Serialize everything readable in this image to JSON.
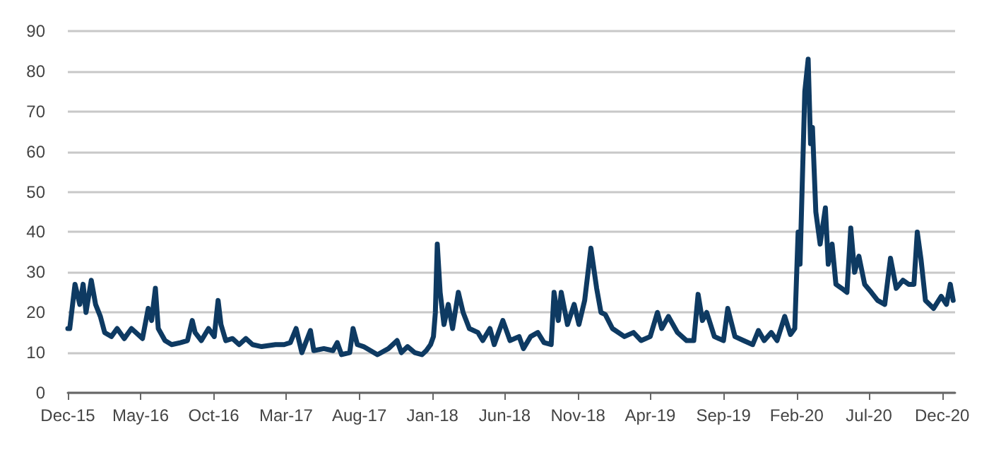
{
  "chart_data": {
    "type": "line",
    "x": [
      "2015-12-01",
      "2015-12-05",
      "2015-12-16",
      "2015-12-26",
      "2016-01-02",
      "2016-01-08",
      "2016-01-19",
      "2016-01-28",
      "2016-02-07",
      "2016-02-16",
      "2016-03-01",
      "2016-03-13",
      "2016-03-28",
      "2016-04-12",
      "2016-05-05",
      "2016-05-17",
      "2016-05-24",
      "2016-06-01",
      "2016-06-07",
      "2016-06-21",
      "2016-07-05",
      "2016-07-24",
      "2016-08-07",
      "2016-08-17",
      "2016-08-23",
      "2016-09-05",
      "2016-09-20",
      "2016-10-02",
      "2016-10-10",
      "2016-10-16",
      "2016-10-26",
      "2016-11-09",
      "2016-11-23",
      "2016-12-07",
      "2016-12-21",
      "2017-01-09",
      "2017-02-07",
      "2017-02-25",
      "2017-03-10",
      "2017-03-22",
      "2017-04-03",
      "2017-04-21",
      "2017-04-28",
      "2017-05-19",
      "2017-06-07",
      "2017-06-16",
      "2017-06-25",
      "2017-07-12",
      "2017-07-19",
      "2017-07-28",
      "2017-08-10",
      "2017-09-08",
      "2017-10-01",
      "2017-10-19",
      "2017-10-28",
      "2017-11-10",
      "2017-11-25",
      "2017-12-10",
      "2017-12-19",
      "2017-12-28",
      "2018-01-03",
      "2018-01-07",
      "2018-01-11",
      "2018-01-17",
      "2018-01-25",
      "2018-02-03",
      "2018-02-12",
      "2018-02-24",
      "2018-03-06",
      "2018-03-19",
      "2018-04-06",
      "2018-04-16",
      "2018-05-01",
      "2018-05-10",
      "2018-05-28",
      "2018-06-12",
      "2018-07-01",
      "2018-07-10",
      "2018-07-25",
      "2018-08-09",
      "2018-08-22",
      "2018-09-06",
      "2018-09-12",
      "2018-09-21",
      "2018-09-27",
      "2018-10-10",
      "2018-10-24",
      "2018-11-03",
      "2018-11-15",
      "2018-11-28",
      "2018-12-10",
      "2018-12-19",
      "2018-12-28",
      "2019-01-12",
      "2019-02-06",
      "2019-02-25",
      "2019-03-13",
      "2019-04-01",
      "2019-04-16",
      "2019-04-25",
      "2019-05-09",
      "2019-05-28",
      "2019-06-16",
      "2019-07-01",
      "2019-07-10",
      "2019-07-19",
      "2019-07-28",
      "2019-08-13",
      "2019-09-01",
      "2019-09-10",
      "2019-09-25",
      "2019-10-13",
      "2019-11-01",
      "2019-11-13",
      "2019-11-25",
      "2019-12-10",
      "2019-12-22",
      "2020-01-07",
      "2020-01-19",
      "2020-01-28",
      "2020-02-04",
      "2020-02-08",
      "2020-02-18",
      "2020-02-25",
      "2020-03-01",
      "2020-03-05",
      "2020-03-12",
      "2020-03-21",
      "2020-04-01",
      "2020-04-07",
      "2020-04-15",
      "2020-04-23",
      "2020-05-05",
      "2020-05-16",
      "2020-05-24",
      "2020-06-01",
      "2020-06-10",
      "2020-06-22",
      "2020-07-06",
      "2020-07-19",
      "2020-08-03",
      "2020-08-15",
      "2020-08-27",
      "2020-09-10",
      "2020-09-22",
      "2020-10-03",
      "2020-10-10",
      "2020-10-18",
      "2020-10-27",
      "2020-11-13",
      "2020-11-29",
      "2020-12-10",
      "2020-12-18",
      "2020-12-24"
    ],
    "series": [
      {
        "color": "#0e3a62",
        "values": [
          16,
          16,
          27,
          22,
          27,
          20,
          28,
          22,
          19,
          15,
          14,
          16,
          13.5,
          16,
          13.5,
          21,
          18,
          26,
          16,
          13,
          12,
          12.5,
          13,
          18,
          15,
          13,
          16,
          14,
          23,
          17,
          13,
          13.5,
          12,
          13.5,
          12,
          11.5,
          12,
          12,
          12.5,
          16,
          10,
          15.5,
          10.5,
          11,
          10.5,
          12.5,
          9.5,
          10,
          16,
          12,
          11.5,
          9.5,
          11,
          13,
          10,
          11.5,
          10,
          9.5,
          10.5,
          12,
          14,
          20,
          37,
          25,
          17,
          22,
          16,
          25,
          20,
          16,
          15,
          13,
          16,
          12,
          18,
          13,
          14,
          11,
          14,
          15,
          12.5,
          12,
          25,
          18,
          25,
          17,
          22,
          17,
          23,
          36,
          26,
          20,
          19.5,
          16,
          14,
          15,
          13,
          14,
          20,
          16,
          19,
          15,
          13,
          13,
          24.5,
          18,
          20,
          14,
          13,
          21,
          14,
          13,
          12,
          15.5,
          13,
          15,
          13,
          19,
          14.5,
          16,
          40,
          32,
          75,
          83,
          62,
          66,
          45,
          37,
          46,
          32,
          37,
          27,
          26,
          25,
          41,
          30,
          34,
          27,
          25,
          23,
          22,
          33.5,
          26,
          28,
          27,
          27,
          40,
          33,
          23,
          21,
          24,
          22,
          27,
          23
        ]
      }
    ],
    "xlim": [
      "2015-12-01",
      "2020-12-28"
    ],
    "xticks": [
      {
        "value": "2015-12-01",
        "label": "Dec-15"
      },
      {
        "value": "2016-05-01",
        "label": "May-16"
      },
      {
        "value": "2016-10-01",
        "label": "Oct-16"
      },
      {
        "value": "2017-03-01",
        "label": "Mar-17"
      },
      {
        "value": "2017-08-01",
        "label": "Aug-17"
      },
      {
        "value": "2018-01-01",
        "label": "Jan-18"
      },
      {
        "value": "2018-06-01",
        "label": "Jun-18"
      },
      {
        "value": "2018-11-01",
        "label": "Nov-18"
      },
      {
        "value": "2019-04-01",
        "label": "Apr-19"
      },
      {
        "value": "2019-09-01",
        "label": "Sep-19"
      },
      {
        "value": "2020-02-01",
        "label": "Feb-20"
      },
      {
        "value": "2020-07-01",
        "label": "Jul-20"
      },
      {
        "value": "2020-12-01",
        "label": "Dec-20"
      }
    ],
    "ylim": [
      0,
      90
    ],
    "yticks": [
      0,
      10,
      20,
      30,
      40,
      50,
      60,
      70,
      80,
      90
    ],
    "grid": "y",
    "marker": "none",
    "line_style": "solid"
  }
}
